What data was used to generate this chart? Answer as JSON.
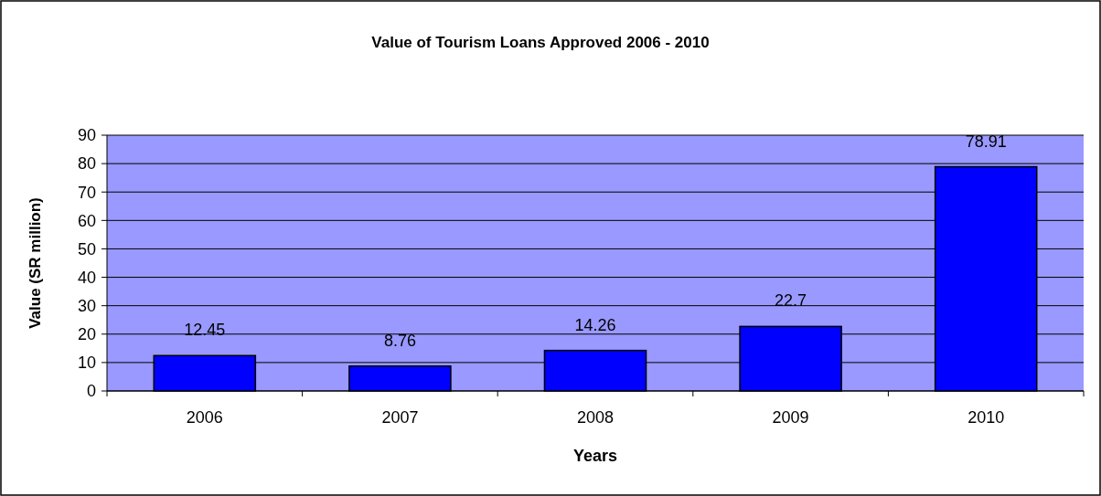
{
  "chart_data": {
    "type": "bar",
    "title": "Value of Tourism Loans Approved 2006 - 2010",
    "xlabel": "Years",
    "ylabel": "Value (SR million)",
    "categories": [
      "2006",
      "2007",
      "2008",
      "2009",
      "2010"
    ],
    "values": [
      12.45,
      8.76,
      14.26,
      22.7,
      78.91
    ],
    "color": "#0000ff",
    "ylim": [
      0,
      90
    ],
    "yticks": [
      0,
      10,
      20,
      30,
      40,
      50,
      60,
      70,
      80,
      90
    ],
    "grid": "y",
    "data_labels": true
  }
}
